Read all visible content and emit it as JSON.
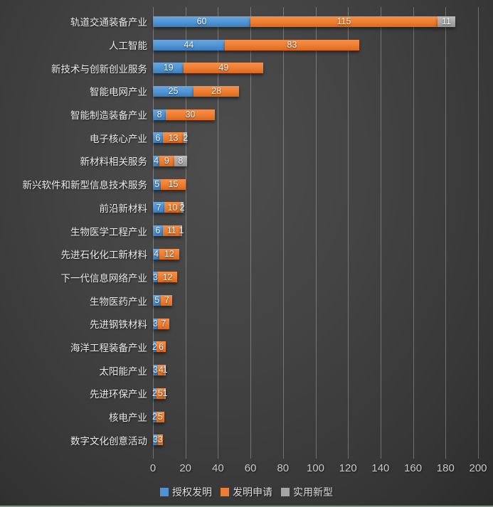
{
  "chart_data": {
    "type": "bar",
    "orientation": "horizontal",
    "stacked": true,
    "title": "",
    "xlabel": "",
    "ylabel": "",
    "grid": true,
    "legend_position": "bottom",
    "xlim": [
      0,
      200
    ],
    "xticks": [
      0,
      20,
      40,
      60,
      80,
      100,
      120,
      140,
      160,
      180,
      200
    ],
    "categories": [
      "轨道交通装备产业",
      "人工智能",
      "新技术与创新创业服务",
      "智能电网产业",
      "智能制造装备产业",
      "电子核心产业",
      "新材料相关服务",
      "新兴软件和新型信息技术服务",
      "前沿新材料",
      "生物医学工程产业",
      "先进石化化工新材料",
      "下一代信息网络产业",
      "生物医药产业",
      "先进钢铁材料",
      "海洋工程装备产业",
      "太阳能产业",
      "先进环保产业",
      "核电产业",
      "数字文化创意活动"
    ],
    "series": [
      {
        "name": "授权发明",
        "color": "#4e94d4",
        "color_light": "#6aa6df",
        "color_dark": "#3e7dbc",
        "values": [
          60,
          44,
          19,
          25,
          8,
          6,
          4,
          5,
          7,
          6,
          4,
          3,
          5,
          3,
          2,
          3,
          2,
          2,
          3
        ]
      },
      {
        "name": "发明申请",
        "color": "#ed7d31",
        "color_light": "#f69048",
        "color_dark": "#d96a1a",
        "values": [
          115,
          83,
          49,
          28,
          30,
          13,
          9,
          15,
          10,
          11,
          12,
          12,
          7,
          7,
          6,
          4,
          5,
          5,
          3
        ]
      },
      {
        "name": "实用新型",
        "color": "#a6a6a6",
        "color_light": "#bdbdbd",
        "color_dark": "#949494",
        "values": [
          11,
          0,
          0,
          0,
          0,
          2,
          8,
          0,
          2,
          1,
          0,
          0,
          0,
          0,
          0,
          1,
          1,
          0,
          0
        ]
      }
    ]
  },
  "colors": {
    "background_center": "#4d4d4d",
    "background_edge": "#2c2c2c",
    "gridline": "rgba(255,255,255,0.28)",
    "bottom_border": "#7a9c80",
    "category_text": "#eaeaea",
    "tick_text": "#c9c9c9",
    "value_text": "#f1f1f1",
    "legend_text": "#dcdcdc"
  }
}
